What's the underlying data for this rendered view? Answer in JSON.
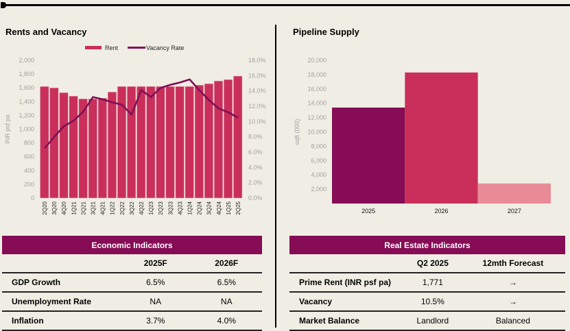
{
  "colors": {
    "rent": "#c92f5a",
    "vacancy": "#7f0f55",
    "supply_2025": "#850c55",
    "supply_2026": "#c92f5a",
    "supply_2027": "#e98b97",
    "table_header": "#850c55",
    "axis_text": "#a0a0a0"
  },
  "chart_data": [
    {
      "type": "bar+line",
      "title": "Rents and Vacancy",
      "legend": [
        "Rent",
        "Vacancy Rate"
      ],
      "legend_position": "top",
      "ylabel": "INR psf pa",
      "ylim": [
        0,
        2000
      ],
      "yticks": [
        "0",
        "200",
        "400",
        "600",
        "800",
        "1,000",
        "1,200",
        "1,400",
        "1,600",
        "1,800",
        "2,000"
      ],
      "y2lim": [
        0,
        18
      ],
      "y2ticks": [
        "0.0%",
        "2.0%",
        "4.0%",
        "6.0%",
        "8.0%",
        "10.0%",
        "12.0%",
        "14.0%",
        "16.0%",
        "18.0%"
      ],
      "categories": [
        "2Q20",
        "3Q20",
        "4Q20",
        "1Q21",
        "2Q21",
        "3Q21",
        "4Q21",
        "1Q22",
        "2Q22",
        "3Q22",
        "4Q22",
        "1Q23",
        "2Q23",
        "3Q23",
        "4Q23",
        "1Q24",
        "2Q24",
        "3Q24",
        "4Q24",
        "1Q25",
        "2Q25"
      ],
      "series": [
        {
          "name": "Rent",
          "type": "bar",
          "axis": "left",
          "values": [
            1620,
            1600,
            1530,
            1480,
            1440,
            1440,
            1450,
            1540,
            1620,
            1620,
            1620,
            1620,
            1620,
            1620,
            1620,
            1620,
            1640,
            1660,
            1700,
            1720,
            1771
          ]
        },
        {
          "name": "Vacancy Rate",
          "type": "line",
          "axis": "right",
          "values": [
            6.5,
            8.0,
            9.4,
            10.1,
            11.3,
            13.2,
            12.9,
            12.5,
            12.2,
            10.9,
            14.1,
            13.2,
            14.4,
            14.8,
            15.1,
            15.5,
            14.1,
            12.8,
            11.7,
            11.2,
            10.5
          ]
        }
      ]
    },
    {
      "type": "bar",
      "title": "Pipeline Supply",
      "ylabel": "sqft (000)",
      "ylim": [
        0,
        20000
      ],
      "yticks": [
        "2,000",
        "4,000",
        "6,000",
        "8,000",
        "10,000",
        "12,000",
        "14,000",
        "16,000",
        "18,000",
        "20,000"
      ],
      "categories": [
        "2025",
        "2026",
        "2027"
      ],
      "values": [
        13400,
        18300,
        2800
      ]
    }
  ],
  "economic": {
    "title": "Economic Indicators",
    "columns": [
      "2025F",
      "2026F"
    ],
    "rows": [
      {
        "label": "GDP Growth",
        "values": [
          "6.5%",
          "6.5%"
        ]
      },
      {
        "label": "Unemployment Rate",
        "values": [
          "NA",
          "NA"
        ]
      },
      {
        "label": "Inflation",
        "values": [
          "3.7%",
          "4.0%"
        ]
      }
    ]
  },
  "real_estate": {
    "title": "Real Estate Indicators",
    "columns": [
      "Q2 2025",
      "12mth Forecast"
    ],
    "rows": [
      {
        "label": "Prime Rent (INR psf pa)",
        "values": [
          "1,771",
          "→"
        ]
      },
      {
        "label": "Vacancy",
        "values": [
          "10.5%",
          "→"
        ]
      },
      {
        "label": "Market Balance",
        "values": [
          "Landlord",
          "Balanced"
        ]
      }
    ]
  }
}
